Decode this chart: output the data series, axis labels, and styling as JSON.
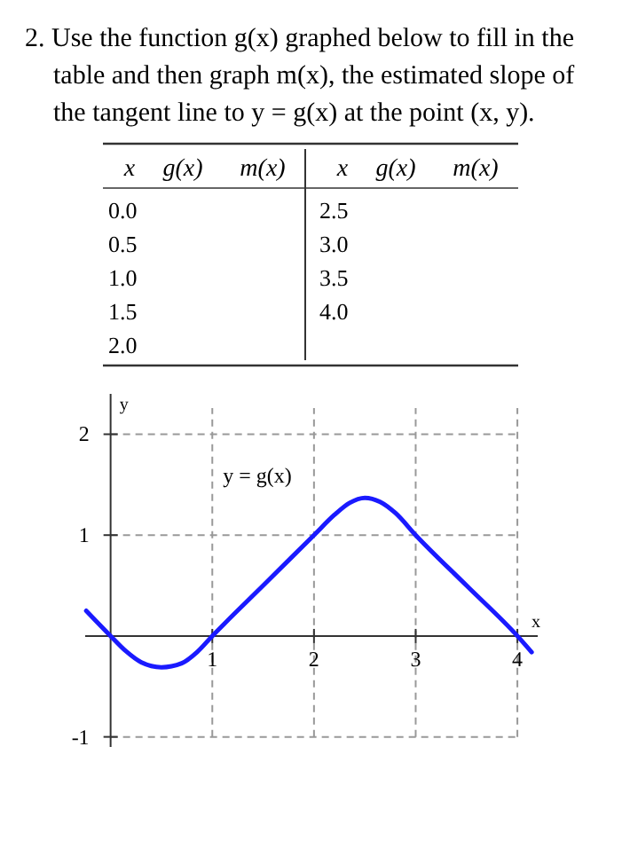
{
  "chart_data": {
    "type": "line",
    "title": "2. Use the function g(x) graphed below to fill in the table and then graph m(x), the estimated slope of the tangent line to y = g(x) at the point (x, y).",
    "xlabel": "x",
    "ylabel": "y",
    "series": [
      {
        "color": "#1a1aff",
        "x": [
          -0.24,
          0,
          0.15,
          0.3,
          0.5,
          0.7,
          0.85,
          1,
          1.5,
          2,
          2.2,
          2.35,
          2.5,
          2.65,
          2.8,
          3,
          3.5,
          4,
          4.14
        ],
        "values": [
          0.25,
          0,
          -0.15,
          -0.26,
          -0.31,
          -0.27,
          -0.16,
          0,
          0.5,
          1,
          1.2,
          1.32,
          1.37,
          1.33,
          1.22,
          1,
          0.5,
          0,
          -0.16
        ]
      }
    ],
    "xlim": [
      -0.25,
      4.2
    ],
    "ylim": [
      -1.1,
      2.4
    ],
    "xticks": [
      1,
      2,
      3,
      4
    ],
    "yticks": [
      -1,
      1,
      2
    ],
    "grid": true,
    "marker": "none",
    "line_style": "solid",
    "annotations": [
      "y = g(x)",
      "x",
      "g(x)",
      "m(x)",
      "x",
      "g(x)",
      "m(x)",
      "0.0",
      "0.5",
      "1.0",
      "1.5",
      "2.0",
      "2.5",
      "3.0",
      "3.5",
      "4.0"
    ]
  }
}
